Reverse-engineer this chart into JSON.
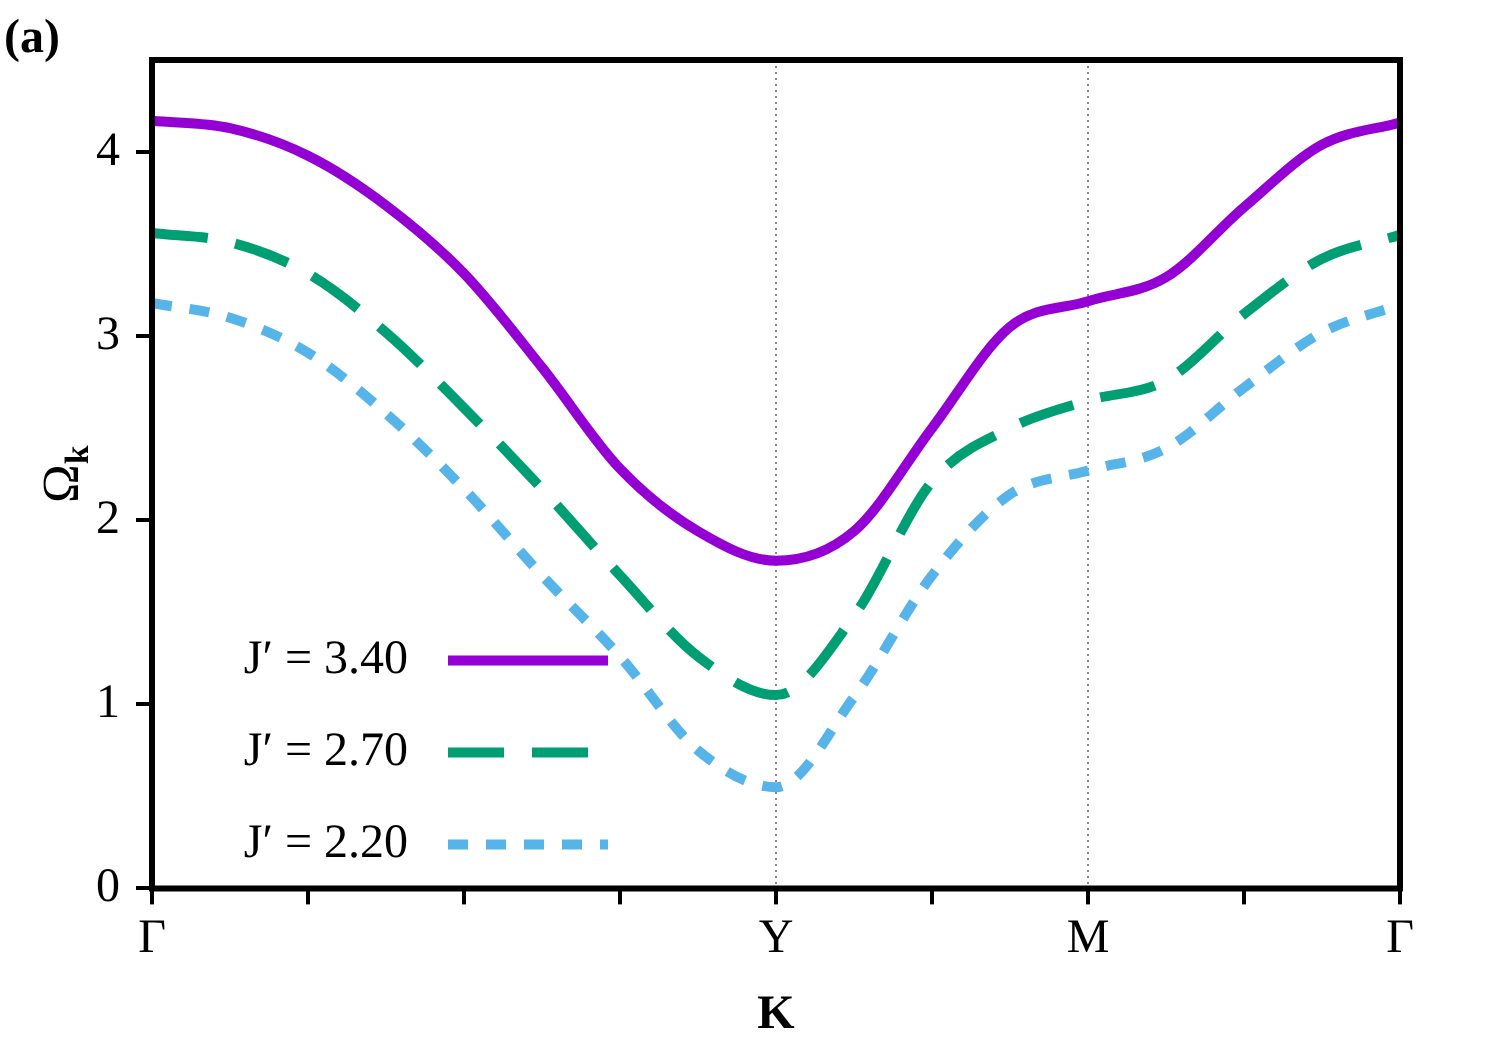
{
  "chart_data": {
    "type": "line",
    "annotations": [
      "(a)"
    ],
    "xlabel": "K",
    "ylabel": "Ω$_{k}$",
    "ylim": [
      0,
      4.5
    ],
    "yticks": [
      0,
      1,
      2,
      3,
      4
    ],
    "categories": [
      "Γ",
      null,
      null,
      null,
      null,
      null,
      null,
      null,
      "Y",
      null,
      null,
      null,
      "M",
      null,
      null,
      null,
      "Γ"
    ],
    "legend": "bottom left",
    "grid": false,
    "marker": "none",
    "ref_lines": [
      {
        "axis": "x",
        "value": "Y",
        "color": "#888888",
        "line_style": "dotted"
      },
      {
        "axis": "x",
        "value": "M",
        "color": "#888888",
        "line_style": "dotted"
      }
    ],
    "series": [
      {
        "name": "J′ = 3.40",
        "color": "#9400d3",
        "line_style": "solid",
        "values": [
          4.17,
          4.13,
          3.98,
          3.71,
          3.34,
          2.83,
          2.28,
          1.94,
          1.78,
          1.94,
          2.5,
          3.05,
          3.19,
          3.32,
          3.7,
          4.04,
          4.16
        ]
      },
      {
        "name": "J′ = 2.70",
        "color": "#009e73",
        "line_style": "dashed",
        "values": [
          3.56,
          3.51,
          3.34,
          3.02,
          2.61,
          2.17,
          1.7,
          1.26,
          1.05,
          1.48,
          2.21,
          2.5,
          2.65,
          2.76,
          3.12,
          3.42,
          3.55
        ]
      },
      {
        "name": "J′ = 2.20",
        "color": "#56b4e9",
        "line_style": "dotted",
        "values": [
          3.18,
          3.1,
          2.91,
          2.58,
          2.17,
          1.7,
          1.26,
          0.75,
          0.55,
          1.04,
          1.7,
          2.14,
          2.27,
          2.39,
          2.72,
          3.02,
          3.17
        ]
      }
    ]
  }
}
